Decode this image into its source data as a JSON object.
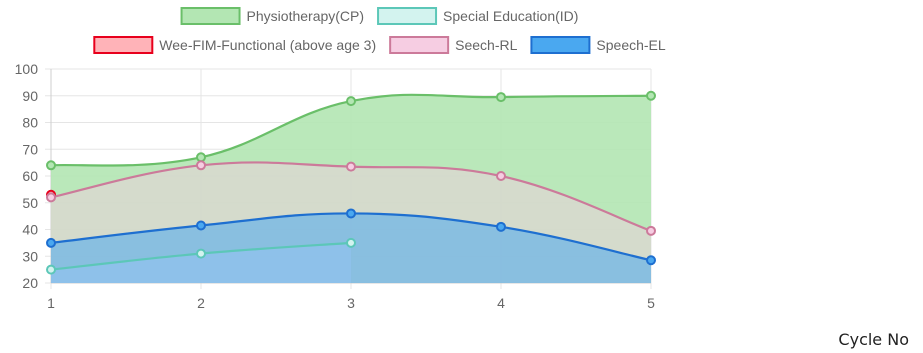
{
  "chart_data": {
    "type": "area",
    "x": [
      1,
      2,
      3,
      4,
      5
    ],
    "xticks": [
      "1",
      "2",
      "3",
      "4",
      "5"
    ],
    "ylim": [
      20,
      100
    ],
    "yticks": [
      "100",
      "90",
      "80",
      "70",
      "60",
      "50",
      "40",
      "30",
      "20"
    ],
    "xlabel": "Cycle No",
    "grid": true,
    "legend": "top",
    "series": [
      {
        "name": "Physiotherapy(CP)",
        "values": [
          64,
          67,
          88,
          89.5,
          90
        ],
        "stroke": "#6abf69",
        "fill": "#b3e6b3"
      },
      {
        "name": "Special Education(ID)",
        "values": [
          25,
          31,
          35,
          null,
          null
        ],
        "stroke": "#5cc7b8",
        "fill": "#d3f3ef"
      },
      {
        "name": "Wee-FIM-Functional (above age 3)",
        "values": [
          53,
          null,
          null,
          null,
          null
        ],
        "stroke": "#e8001c",
        "fill": "#ffb3b8"
      },
      {
        "name": "Seech-RL",
        "values": [
          52,
          64,
          63.5,
          60,
          39.5
        ],
        "stroke": "#cc7a9a",
        "fill": "#f6cde2"
      },
      {
        "name": "Speech-EL",
        "values": [
          35,
          41.5,
          46,
          41,
          28.5
        ],
        "stroke": "#1e6fd0",
        "fill": "#4aa8f0"
      }
    ]
  }
}
